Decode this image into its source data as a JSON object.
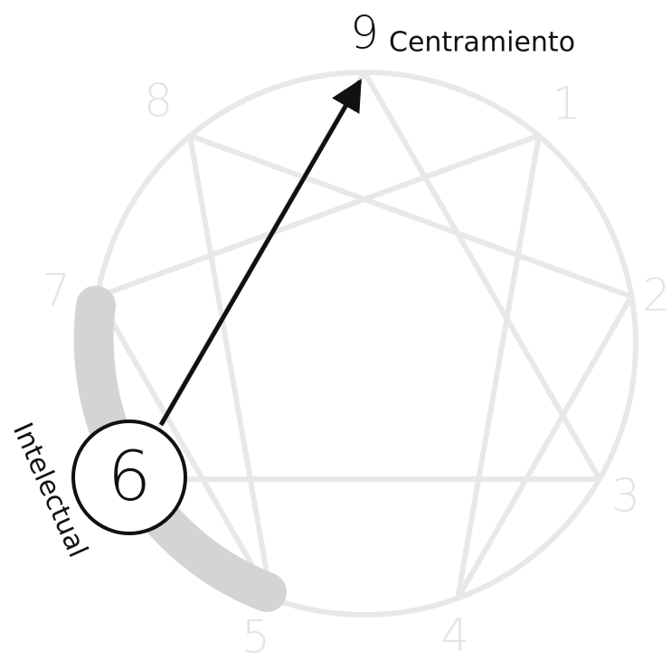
{
  "diagram": {
    "nodes": [
      {
        "label": "1"
      },
      {
        "label": "2"
      },
      {
        "label": "3"
      },
      {
        "label": "4"
      },
      {
        "label": "5"
      },
      {
        "label": "6"
      },
      {
        "label": "7"
      },
      {
        "label": "8"
      },
      {
        "label": "9"
      }
    ],
    "highlight": "6",
    "target_label": "Centramiento",
    "arc_label": "Intelectual"
  }
}
